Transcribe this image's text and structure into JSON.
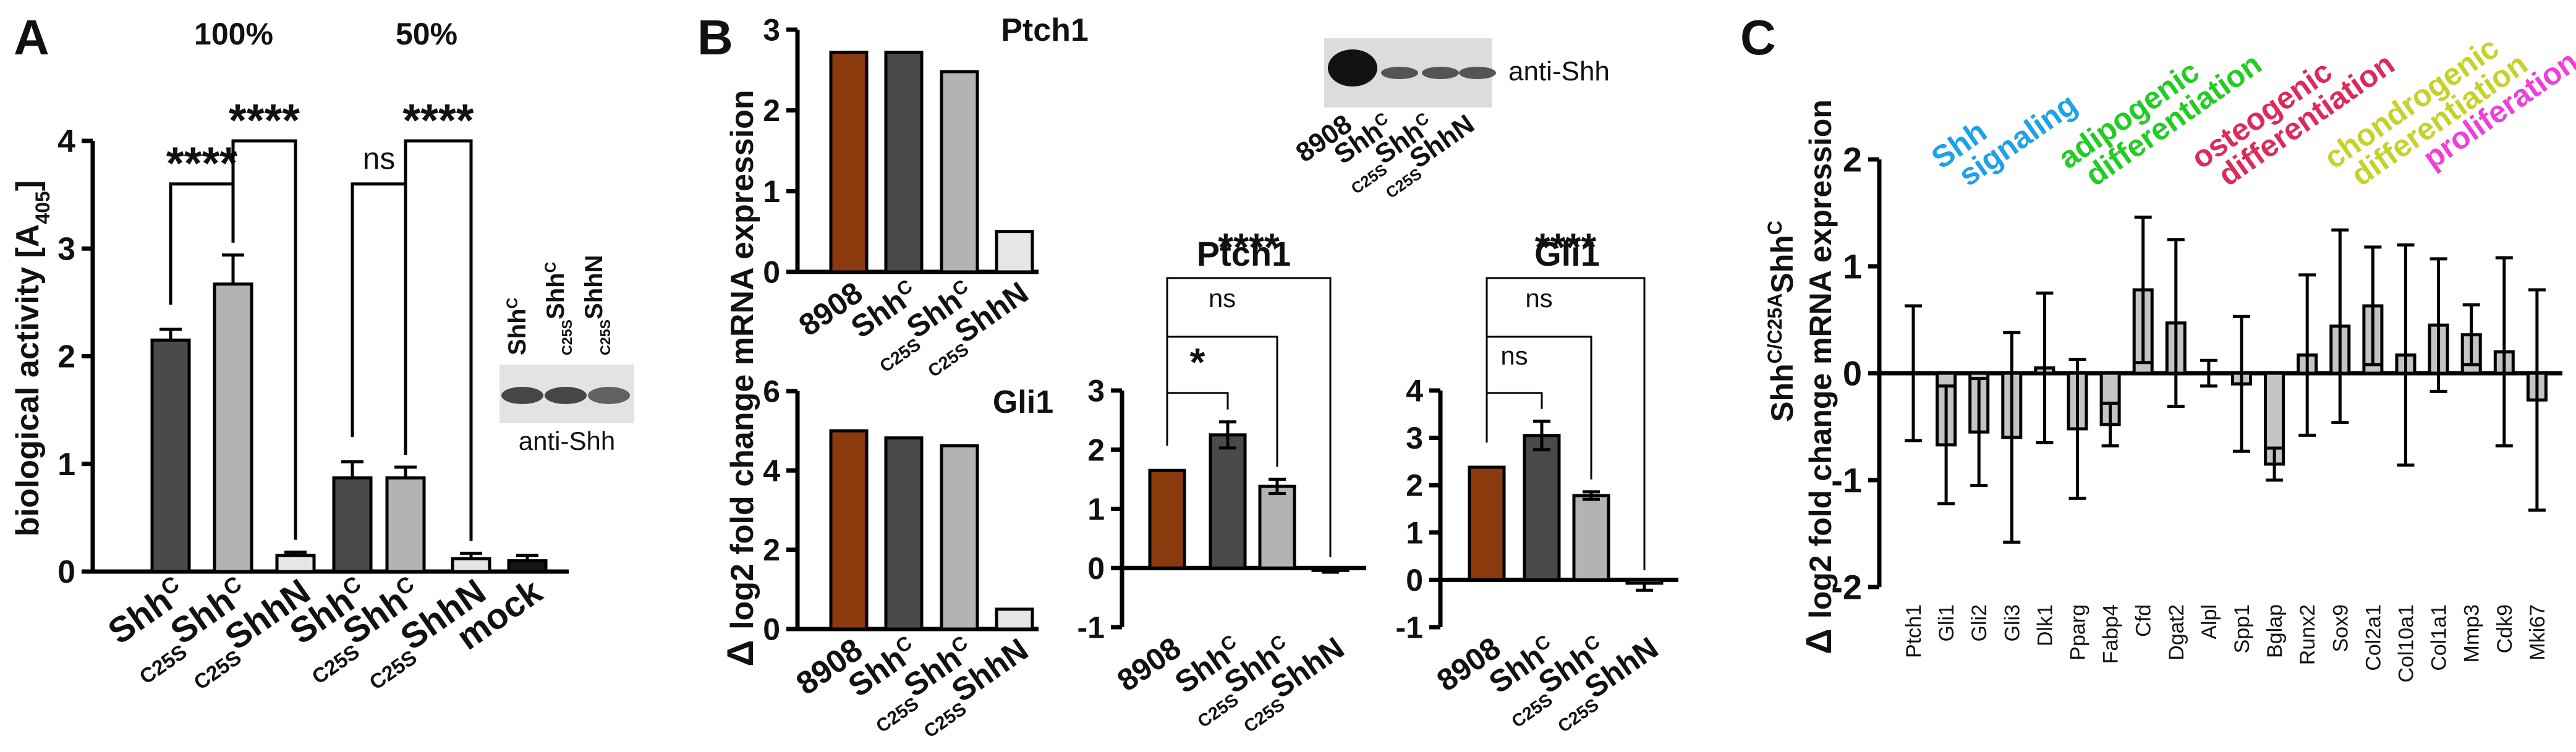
{
  "colors": {
    "brown": "#8b3a0e",
    "dark": "#4a4a4a",
    "mid": "#b3b3b3",
    "light": "#e6e6e6",
    "black": "#151515",
    "barC": "#c4c4c4",
    "cat_shh": "#1fa0ea",
    "cat_adipo": "#22cc22",
    "cat_osteo": "#dd2a5a",
    "cat_chondro": "#c6d22a",
    "cat_prolif": "#ef3fd8"
  },
  "panels": {
    "a": "A",
    "b": "B",
    "c": "C"
  },
  "chart_data": [
    {
      "id": "A",
      "type": "bar",
      "ylabel": "biological activity [A",
      "ylabel_sub": "405",
      "ylabel_end": "]",
      "ylim": [
        0,
        4
      ],
      "yticks": [
        "0",
        "1",
        "2",
        "3",
        "4"
      ],
      "group_labels": [
        "100%",
        "50%"
      ],
      "bars": [
        {
          "name": "Shh",
          "sup": "C",
          "pre": "",
          "value": 2.15,
          "err": 0.1,
          "color": "dark"
        },
        {
          "name": "Shh",
          "sup": "C",
          "pre": "C25S",
          "value": 2.67,
          "err": 0.27,
          "color": "mid"
        },
        {
          "name": "ShhN",
          "sup": "",
          "pre": "C25S",
          "value": 0.15,
          "err": 0.03,
          "color": "light"
        },
        {
          "name": "Shh",
          "sup": "C",
          "pre": "",
          "value": 0.87,
          "err": 0.15,
          "color": "dark"
        },
        {
          "name": "Shh",
          "sup": "C",
          "pre": "C25S",
          "value": 0.87,
          "err": 0.1,
          "color": "mid"
        },
        {
          "name": "ShhN",
          "sup": "",
          "pre": "C25S",
          "value": 0.12,
          "err": 0.05,
          "color": "light"
        },
        {
          "name": "mock",
          "sup": "",
          "pre": "",
          "value": 0.1,
          "err": 0.05,
          "color": "black"
        }
      ],
      "significance": [
        {
          "label": "****",
          "from": 0,
          "to": 1,
          "y": 3.6
        },
        {
          "label": "****",
          "from": 1,
          "to": 2,
          "y": 4.0
        },
        {
          "label": "ns",
          "from": 3,
          "to": 4,
          "y": 3.6
        },
        {
          "label": "****",
          "from": 4,
          "to": 5,
          "y": 4.0
        }
      ],
      "blot": {
        "caption": "anti-Shh",
        "lanes": [
          {
            "name": "Shh",
            "sup": "C",
            "pre": ""
          },
          {
            "name": "Shh",
            "sup": "C",
            "pre": "C25S"
          },
          {
            "name": "ShhN",
            "sup": "",
            "pre": "C25S"
          }
        ]
      }
    },
    {
      "id": "B-Ptch1-top",
      "type": "bar",
      "title": "Ptch1",
      "ylabel": "log2 fold change mRNA expression",
      "ylim": [
        0,
        3
      ],
      "yticks": [
        "0",
        "1",
        "2",
        "3"
      ],
      "bars": [
        {
          "value": 2.72,
          "color": "brown"
        },
        {
          "value": 2.72,
          "color": "dark"
        },
        {
          "value": 2.48,
          "color": "mid"
        },
        {
          "value": 0.5,
          "color": "light"
        }
      ]
    },
    {
      "id": "B-Gli1-top",
      "type": "bar",
      "title": "Gli1",
      "ylim": [
        0,
        6
      ],
      "yticks": [
        "0",
        "2",
        "4",
        "6"
      ],
      "categories": [
        {
          "name": "8908",
          "sup": "",
          "pre": ""
        },
        {
          "name": "Shh",
          "sup": "C",
          "pre": ""
        },
        {
          "name": "Shh",
          "sup": "C",
          "pre": "C25S"
        },
        {
          "name": "ShhN",
          "sup": "",
          "pre": "C25S"
        }
      ],
      "bars": [
        {
          "value": 5.0,
          "color": "brown"
        },
        {
          "value": 4.82,
          "color": "dark"
        },
        {
          "value": 4.62,
          "color": "mid"
        },
        {
          "value": 0.5,
          "color": "light"
        }
      ]
    },
    {
      "id": "B-Ptch1",
      "type": "bar",
      "title": "Ptch1",
      "ylim": [
        -1,
        3
      ],
      "yticks": [
        "-1",
        "0",
        "1",
        "2",
        "3"
      ],
      "categories": [
        {
          "name": "8908",
          "sup": "",
          "pre": ""
        },
        {
          "name": "Shh",
          "sup": "C",
          "pre": ""
        },
        {
          "name": "Shh",
          "sup": "C",
          "pre": "C25S"
        },
        {
          "name": "ShhN",
          "sup": "",
          "pre": "C25S"
        }
      ],
      "bars": [
        {
          "value": 1.65,
          "err": 0,
          "color": "brown"
        },
        {
          "value": 2.25,
          "err": 0.22,
          "color": "dark"
        },
        {
          "value": 1.38,
          "err": 0.12,
          "color": "mid"
        },
        {
          "value": -0.02,
          "err": 0.05,
          "color": "light"
        }
      ],
      "significance": [
        {
          "label": "*",
          "to": 1,
          "y": 2.85
        },
        {
          "label": "ns",
          "to": 2,
          "y": 4.6
        },
        {
          "label": "****",
          "to": 3,
          "y": 6.3
        }
      ]
    },
    {
      "id": "B-Gli1",
      "type": "bar",
      "title": "Gli1",
      "ylim": [
        -1,
        4
      ],
      "yticks": [
        "-1",
        "0",
        "1",
        "2",
        "3",
        "4"
      ],
      "categories": [
        {
          "name": "8908",
          "sup": "",
          "pre": ""
        },
        {
          "name": "Shh",
          "sup": "C",
          "pre": ""
        },
        {
          "name": "Shh",
          "sup": "C",
          "pre": "C25S"
        },
        {
          "name": "ShhN",
          "sup": "",
          "pre": "C25S"
        }
      ],
      "bars": [
        {
          "value": 2.38,
          "err": 0,
          "color": "brown"
        },
        {
          "value": 3.05,
          "err": 0.3,
          "color": "dark"
        },
        {
          "value": 1.78,
          "err": 0.08,
          "color": "mid"
        },
        {
          "value": -0.07,
          "err": 0.15,
          "color": "light"
        }
      ],
      "significance": [
        {
          "label": "ns",
          "to": 1,
          "y": 3.85
        },
        {
          "label": "ns",
          "to": 2,
          "y": 5.4
        },
        {
          "label": "****",
          "to": 3,
          "y": 7.0
        }
      ]
    },
    {
      "id": "C",
      "type": "bar",
      "ylabel": "log2 fold change mRNA expression",
      "ylabel_top": "Shh",
      "ylabel_top_sup1": "C",
      "ylabel_top_sep": "/",
      "ylabel_top_sup2": "C25A",
      "ylabel_top_end": "Shh",
      "ylabel_top_sup3": "C",
      "ylim": [
        -2,
        2
      ],
      "yticks": [
        "-2",
        "-1",
        "0",
        "1",
        "2"
      ],
      "categories": [
        "Ptch1",
        "Gli1",
        "Gli2",
        "Gli3",
        "Dlk1",
        "Pparg",
        "Fabp4",
        "Cfd",
        "Dgat2",
        "Alpl",
        "Spp1",
        "Bglap",
        "Runx2",
        "Sox9",
        "Col2a1",
        "Col10a1",
        "Col1a1",
        "Mmp3",
        "Cdk9",
        "Mki67"
      ],
      "values": [
        0.0,
        -0.67,
        -0.55,
        -0.6,
        0.05,
        -0.52,
        -0.48,
        0.78,
        0.47,
        0.0,
        -0.1,
        -0.85,
        0.17,
        0.44,
        0.63,
        0.17,
        0.45,
        0.36,
        0.2,
        -0.25
      ],
      "errors": [
        0.63,
        0.55,
        0.5,
        0.98,
        0.7,
        0.65,
        0.2,
        0.68,
        0.78,
        0.12,
        0.63,
        0.15,
        0.75,
        0.9,
        0.55,
        1.03,
        0.62,
        0.28,
        0.88,
        1.03
      ],
      "category_groups": [
        {
          "line1": "Shh",
          "line2": "signaling",
          "color": "cat_shh"
        },
        {
          "line1": "adipogenic",
          "line2": "differentiation",
          "color": "cat_adipo"
        },
        {
          "line1": "osteogenic",
          "line2": "differentiation",
          "color": "cat_osteo"
        },
        {
          "line1": "chondrogenic",
          "line2": "differentiation",
          "color": "cat_chondro"
        },
        {
          "line1": "proliferation",
          "line2": "",
          "color": "cat_prolif"
        }
      ]
    }
  ],
  "blot_b": {
    "caption": "anti-Shh",
    "lanes": [
      {
        "name": "8908",
        "sup": "",
        "pre": ""
      },
      {
        "name": "Shh",
        "sup": "C",
        "pre": ""
      },
      {
        "name": "Shh",
        "sup": "C",
        "pre": "C25S"
      },
      {
        "name": "ShhN",
        "sup": "",
        "pre": "C25S"
      }
    ]
  }
}
